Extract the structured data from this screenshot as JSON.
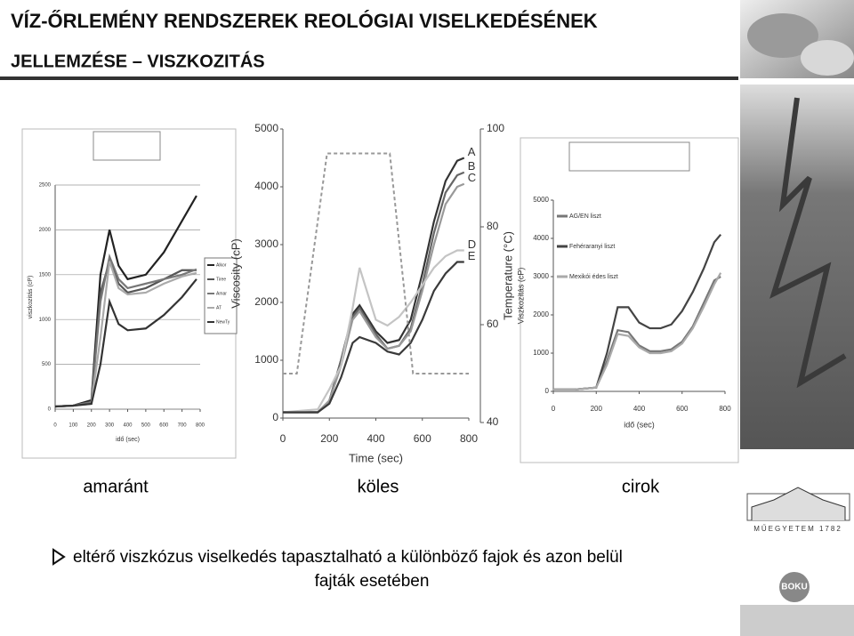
{
  "header": {
    "title_line1": "VÍZ-ŐRLEMÉNY RENDSZEREK REOLÓGIAI VISELKEDÉSÉNEK",
    "title_line2": "JELLEMZÉSE – VISZKOZITÁS"
  },
  "charts": [
    {
      "type": "line",
      "xlabel": "idő (sec)",
      "ylabel": "viszkozitás (cP)",
      "xlim": [
        0,
        800
      ],
      "xticks": [
        0,
        100,
        200,
        300,
        400,
        500,
        600,
        700,
        800
      ],
      "ylim": [
        0,
        2500
      ],
      "yticks": [
        0,
        500,
        1000,
        1500,
        2000,
        2500
      ],
      "grid": true,
      "legend": "right",
      "x": [
        0,
        100,
        200,
        250,
        300,
        350,
        400,
        500,
        600,
        700,
        780
      ],
      "series": [
        {
          "name": "Alkor",
          "color": "#222222",
          "values": [
            30,
            40,
            100,
            1500,
            2000,
            1600,
            1450,
            1500,
            1750,
            2100,
            2380
          ]
        },
        {
          "name": "Tiree",
          "color": "#555555",
          "values": [
            30,
            40,
            80,
            1300,
            1650,
            1400,
            1300,
            1350,
            1450,
            1550,
            1550
          ]
        },
        {
          "name": "Amar",
          "color": "#777777",
          "values": [
            30,
            40,
            80,
            1200,
            1700,
            1450,
            1350,
            1400,
            1450,
            1500,
            1560
          ]
        },
        {
          "name": "AT",
          "color": "#aaaaaa",
          "values": [
            30,
            40,
            60,
            800,
            1650,
            1350,
            1280,
            1300,
            1400,
            1480,
            1520
          ]
        },
        {
          "name": "NewTy",
          "color": "#333333",
          "values": [
            30,
            40,
            60,
            500,
            1200,
            950,
            880,
            900,
            1050,
            1250,
            1450
          ]
        }
      ]
    },
    {
      "type": "line",
      "xlabel": "Time (sec)",
      "ylabel": "Viscosity (cP)",
      "y2label": "Temperature (°C)",
      "xlim": [
        0,
        800
      ],
      "xticks": [
        0,
        200,
        400,
        600,
        800
      ],
      "ylim": [
        0,
        5000
      ],
      "yticks": [
        0,
        1000,
        2000,
        3000,
        4000,
        5000
      ],
      "y2lim": [
        40,
        100
      ],
      "y2ticks": [
        40,
        60,
        80,
        100
      ],
      "x": [
        0,
        150,
        200,
        250,
        300,
        330,
        400,
        450,
        500,
        550,
        600,
        650,
        700,
        750,
        780
      ],
      "series": [
        {
          "name": "A",
          "color": "#333333",
          "values": [
            100,
            100,
            300,
            1000,
            1800,
            1950,
            1500,
            1300,
            1350,
            1700,
            2500,
            3400,
            4100,
            4450,
            4500
          ]
        },
        {
          "name": "B",
          "color": "#666666",
          "values": [
            100,
            100,
            300,
            1000,
            1750,
            1900,
            1450,
            1200,
            1250,
            1550,
            2300,
            3200,
            3900,
            4200,
            4250
          ]
        },
        {
          "name": "C",
          "color": "#999999",
          "values": [
            100,
            100,
            300,
            900,
            1700,
            1850,
            1400,
            1200,
            1250,
            1500,
            2200,
            3000,
            3700,
            4000,
            4050
          ]
        },
        {
          "name": "D",
          "color": "#c4c4c4",
          "values": [
            100,
            150,
            500,
            900,
            1900,
            2600,
            1700,
            1600,
            1750,
            2000,
            2300,
            2600,
            2800,
            2900,
            2900
          ]
        },
        {
          "name": "E",
          "color": "#3a3a3a",
          "values": [
            100,
            100,
            250,
            700,
            1300,
            1400,
            1300,
            1150,
            1100,
            1300,
            1700,
            2200,
            2500,
            2700,
            2700
          ]
        },
        {
          "axis": "y2",
          "color": "#999999",
          "dashed": true,
          "x": [
            0,
            60,
            190,
            460,
            560,
            800
          ],
          "values": [
            50,
            50,
            95,
            95,
            50,
            50
          ]
        }
      ]
    },
    {
      "type": "line",
      "xlabel": "idő (sec)",
      "ylabel": "Viszkozitás (cP)",
      "legend": "upper left",
      "xlim": [
        0,
        800
      ],
      "xticks": [
        0,
        200,
        400,
        600,
        800
      ],
      "ylim": [
        0,
        5000
      ],
      "yticks": [
        0,
        1000,
        2000,
        3000,
        4000,
        5000
      ],
      "x": [
        0,
        100,
        200,
        250,
        300,
        350,
        400,
        450,
        500,
        550,
        600,
        650,
        700,
        750,
        780
      ],
      "series": [
        {
          "name": "AG/EN liszt",
          "color": "#777777",
          "values": [
            50,
            50,
            100,
            800,
            1600,
            1550,
            1200,
            1050,
            1050,
            1100,
            1300,
            1700,
            2300,
            2900,
            3000
          ]
        },
        {
          "name": "Fehéraranyi liszt",
          "color": "#444444",
          "values": [
            50,
            50,
            100,
            1000,
            2200,
            2200,
            1800,
            1650,
            1650,
            1750,
            2100,
            2600,
            3200,
            3900,
            4100
          ]
        },
        {
          "name": "Mexikói édes liszt",
          "color": "#aaaaaa",
          "values": [
            50,
            50,
            100,
            700,
            1500,
            1450,
            1150,
            1000,
            1000,
            1050,
            1250,
            1650,
            2200,
            2800,
            3100
          ]
        }
      ]
    }
  ],
  "captions": [
    "amaránt",
    "köles",
    "cirok"
  ],
  "bullet": "eltérő viszkózus viselkedés tapasztalható a különböző fajok és azon belül",
  "bullet_line2": "fajták esetében",
  "logo_bme": "MŰEGYETEM 1782",
  "logo_boku": "BOKU"
}
